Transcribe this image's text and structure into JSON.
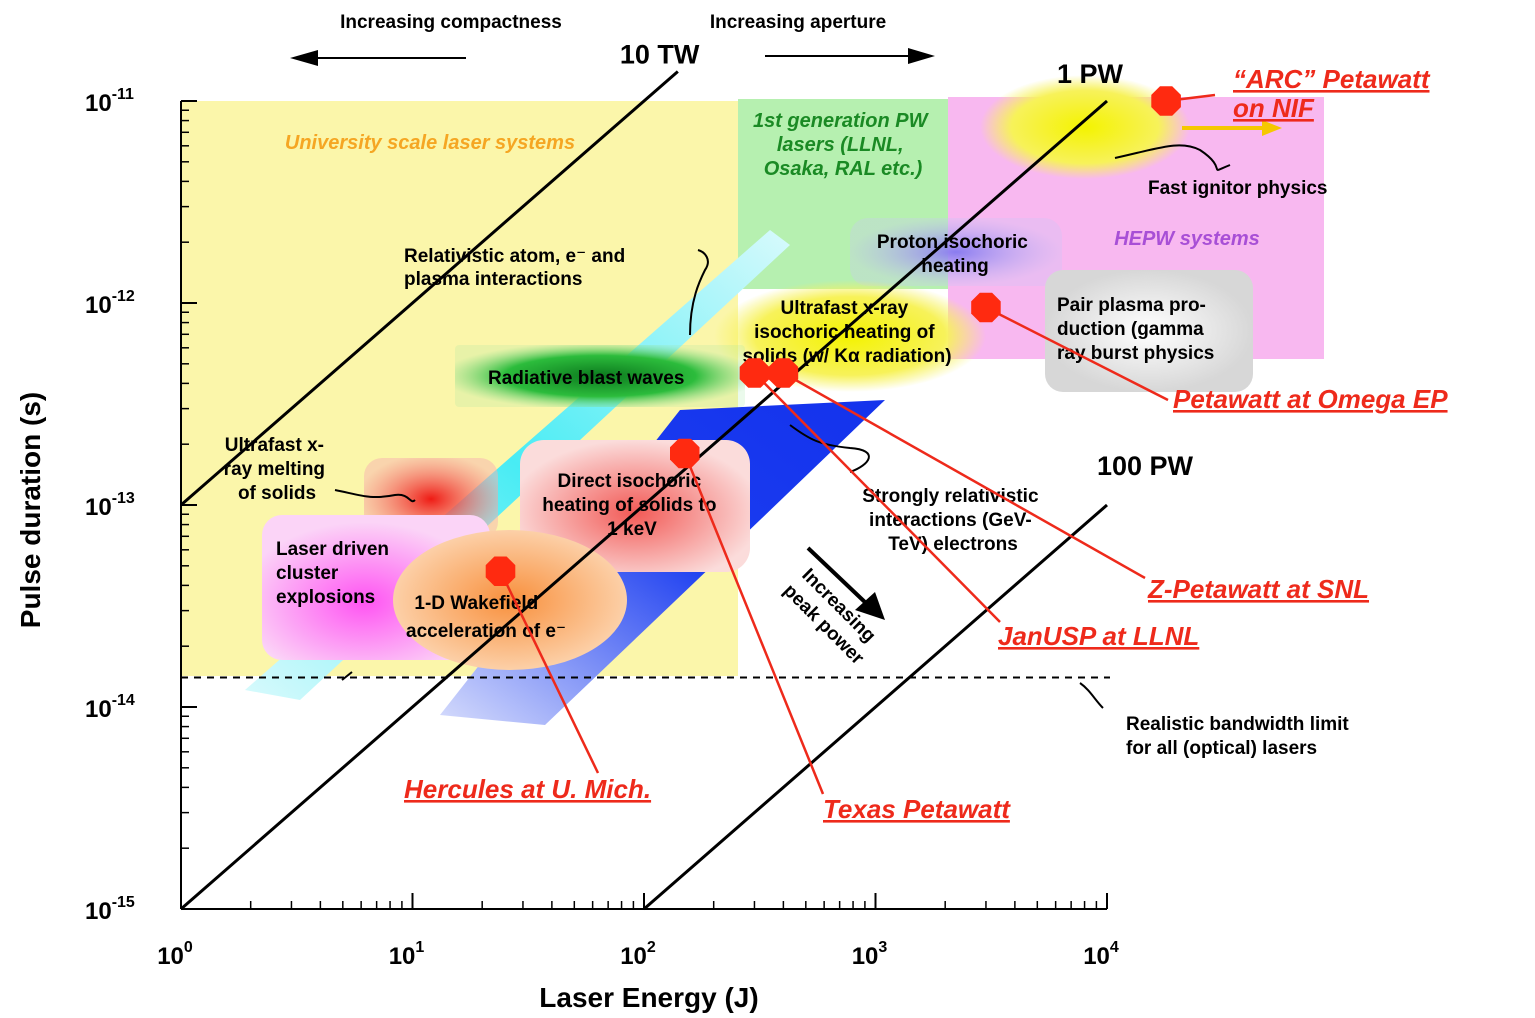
{
  "chart_data": {
    "type": "scatter",
    "title": "",
    "xlabel": "Laser Energy (J)",
    "ylabel": "Pulse duration (s)",
    "x_scale": "log",
    "y_scale": "log",
    "xlim": [
      1,
      10000
    ],
    "ylim": [
      1e-15,
      1e-11
    ],
    "x_ticks": [
      {
        "value": 1,
        "base": "10",
        "exp": "0"
      },
      {
        "value": 10,
        "base": "10",
        "exp": "1"
      },
      {
        "value": 100,
        "base": "10",
        "exp": "2"
      },
      {
        "value": 1000,
        "base": "10",
        "exp": "3"
      },
      {
        "value": 10000,
        "base": "10",
        "exp": "4"
      }
    ],
    "y_ticks": [
      {
        "value": 1e-11,
        "base": "10",
        "exp": "-11"
      },
      {
        "value": 1e-12,
        "base": "10",
        "exp": "-12"
      },
      {
        "value": 1e-13,
        "base": "10",
        "exp": "-13"
      },
      {
        "value": 1e-14,
        "base": "10",
        "exp": "-14"
      },
      {
        "value": 1e-15,
        "base": "10",
        "exp": "-15"
      }
    ],
    "grid": false,
    "direction_labels": {
      "left": "Increasing compactness",
      "right": "Increasing aperture"
    },
    "power_lines": [
      {
        "label": "10 TW",
        "power_w": 10000000000000.0
      },
      {
        "label": "1 PW",
        "power_w": 1000000000000000.0
      },
      {
        "label": "100 PW",
        "power_w": 1e+17
      }
    ],
    "bandwidth_limit": {
      "pulse_s": 1.4e-14,
      "label_lines": [
        "Realistic bandwidth limit",
        "for all (optical) lasers"
      ]
    },
    "regions": [
      {
        "lines": [
          "University scale laser systems"
        ],
        "color": "#f5a623"
      },
      {
        "lines": [
          "1st generation PW",
          "lasers (LLNL,",
          "Osaka, RAL etc.)"
        ],
        "color": "#1a8a24"
      },
      {
        "lines": [
          "HEPW systems"
        ],
        "color": "#a84fd6"
      }
    ],
    "physics_regimes": [
      {
        "lines": [
          "Relativistic atom, e⁻ and",
          "plasma interactions"
        ]
      },
      {
        "lines": [
          "Proton isochoric",
          "heating"
        ]
      },
      {
        "lines": [
          "Ultrafast x-ray",
          "isochoric heating of",
          "solids (w/ Kα radiation)"
        ]
      },
      {
        "lines": [
          "Pair plasma pro-",
          "duction (gamma",
          "ray burst physics"
        ]
      },
      {
        "lines": [
          "Radiative blast waves"
        ]
      },
      {
        "lines": [
          "Ultrafast x-",
          "ray  melting",
          "of solids"
        ]
      },
      {
        "lines": [
          "Direct isochoric",
          "heating of solids to",
          "1 keV"
        ]
      },
      {
        "lines": [
          "Strongly relativistic",
          "interactions (GeV-",
          "TeV) electrons"
        ]
      },
      {
        "lines": [
          "Laser driven",
          "cluster",
          "explosions"
        ]
      },
      {
        "lines": [
          "1-D Wakefield",
          "acceleration of e⁻"
        ]
      },
      {
        "lines": [
          "Fast ignitor physics"
        ]
      }
    ],
    "peak_power_arrow": {
      "lines": [
        "Increasing",
        "peak power"
      ]
    },
    "series": [
      {
        "name": "Petawatt facilities",
        "points": [
          {
            "label_lines": [
              "“ARC” Petawatt",
              "on NIF"
            ],
            "energy_j": 18000,
            "pulse_s": 1e-11
          },
          {
            "label_lines": [
              "Petawatt at Omega EP"
            ],
            "energy_j": 3000,
            "pulse_s": 9.5e-13
          },
          {
            "label_lines": [
              "Z-Petawatt at SNL"
            ],
            "energy_j": 400,
            "pulse_s": 4.5e-13
          },
          {
            "label_lines": [
              "JanUSP at LLNL"
            ],
            "energy_j": 300,
            "pulse_s": 4.5e-13
          },
          {
            "label_lines": [
              "Texas Petawatt"
            ],
            "energy_j": 150,
            "pulse_s": 1.8e-13
          },
          {
            "label_lines": [
              "Hercules at U. Mich."
            ],
            "energy_j": 24,
            "pulse_s": 4.7e-14
          }
        ]
      }
    ],
    "colors": {
      "university": "#fbf6aa",
      "first_gen": "#b6f0b0",
      "hepw": "#f8b8f0",
      "facility": "#ee2a1b",
      "marker": "#ff2a10"
    }
  }
}
